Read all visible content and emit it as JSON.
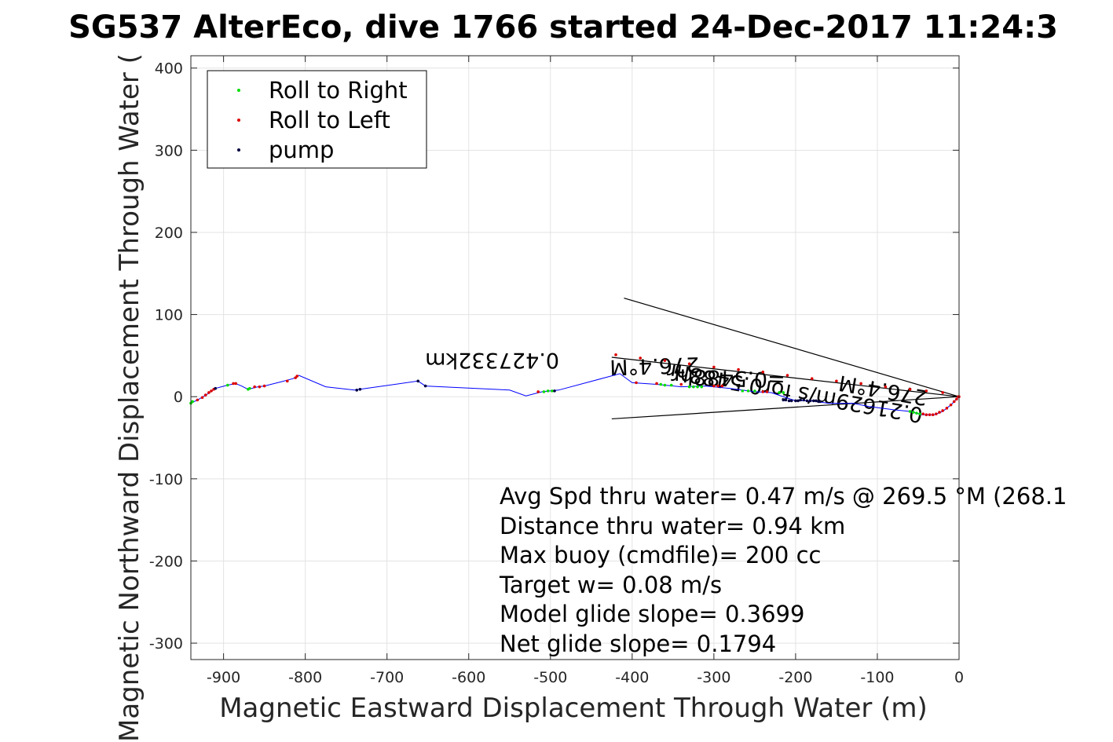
{
  "chart_data": {
    "type": "scatter",
    "title": "SG537 AlterEco, dive 1766 started 24-Dec-2017 11:24:3",
    "xlabel": "Magnetic Eastward Displacement Through Water (m)",
    "ylabel": "Magnetic Northward Displacement Through Water (",
    "xlim": [
      -940,
      0
    ],
    "ylim": [
      -320,
      415
    ],
    "xticks": [
      -900,
      -800,
      -700,
      -600,
      -500,
      -400,
      -300,
      -200,
      -100,
      0
    ],
    "yticks": [
      400,
      300,
      200,
      100,
      0,
      -100,
      -200,
      -300
    ],
    "grid": true,
    "legend_position": "top-left",
    "legend": [
      {
        "label": "Roll to Right",
        "color": "#00dd00"
      },
      {
        "label": "Roll to Left",
        "color": "#dd0000"
      },
      {
        "label": "pump",
        "color": "#000040"
      }
    ],
    "track_color": "#0000ff",
    "track": [
      [
        -940,
        -8
      ],
      [
        -930,
        -3
      ],
      [
        -920,
        3
      ],
      [
        -910,
        10
      ],
      [
        -895,
        14
      ],
      [
        -885,
        16
      ],
      [
        -878,
        13
      ],
      [
        -870,
        9
      ],
      [
        -858,
        12
      ],
      [
        -850,
        13
      ],
      [
        -830,
        18
      ],
      [
        -815,
        22
      ],
      [
        -808,
        26
      ],
      [
        -775,
        12
      ],
      [
        -740,
        8
      ],
      [
        -733,
        9
      ],
      [
        -662,
        19
      ],
      [
        -653,
        13
      ],
      [
        -550,
        8
      ],
      [
        -530,
        1
      ],
      [
        -510,
        6
      ],
      [
        -490,
        8
      ],
      [
        -415,
        28
      ],
      [
        -400,
        17
      ],
      [
        -370,
        15
      ],
      [
        -340,
        12
      ],
      [
        -310,
        13
      ],
      [
        -280,
        10
      ],
      [
        -250,
        6
      ],
      [
        -230,
        5
      ],
      [
        -200,
        -5
      ],
      [
        -180,
        -5
      ],
      [
        -160,
        -8
      ],
      [
        -130,
        -8
      ],
      [
        -110,
        -12
      ],
      [
        -80,
        -16
      ],
      [
        -60,
        -18
      ],
      [
        -45,
        -22
      ],
      [
        -30,
        -22
      ],
      [
        -20,
        -18
      ],
      [
        -10,
        -10
      ],
      [
        -3,
        -3
      ],
      [
        0,
        0
      ]
    ],
    "roll_right": [
      [
        -940,
        -8
      ],
      [
        -938,
        -6
      ],
      [
        -870,
        9
      ],
      [
        -868,
        10
      ],
      [
        -895,
        14
      ],
      [
        -508,
        6
      ],
      [
        -503,
        7
      ],
      [
        -498,
        7
      ],
      [
        -365,
        15
      ],
      [
        -360,
        14
      ],
      [
        -352,
        14
      ],
      [
        -330,
        12
      ],
      [
        -325,
        12
      ],
      [
        -320,
        12
      ],
      [
        -315,
        12
      ],
      [
        -265,
        7
      ],
      [
        -258,
        7
      ],
      [
        -250,
        7
      ],
      [
        -220,
        5
      ],
      [
        -215,
        5
      ],
      [
        -60,
        -18
      ],
      [
        -56,
        -19
      ],
      [
        -52,
        -20
      ],
      [
        -48,
        -21
      ]
    ],
    "roll_left": [
      [
        -932,
        -4
      ],
      [
        -926,
        -1
      ],
      [
        -922,
        2
      ],
      [
        -918,
        5
      ],
      [
        -915,
        7
      ],
      [
        -912,
        9
      ],
      [
        -888,
        16
      ],
      [
        -885,
        16
      ],
      [
        -862,
        12
      ],
      [
        -856,
        12
      ],
      [
        -850,
        13
      ],
      [
        -822,
        19
      ],
      [
        -812,
        23
      ],
      [
        -810,
        25
      ],
      [
        -515,
        6
      ],
      [
        -395,
        17
      ],
      [
        -370,
        16
      ],
      [
        -340,
        15
      ],
      [
        -300,
        13
      ],
      [
        -295,
        13
      ],
      [
        -290,
        13
      ],
      [
        -240,
        6
      ],
      [
        -235,
        6
      ],
      [
        -44,
        -21
      ],
      [
        -40,
        -22
      ],
      [
        -36,
        -22
      ],
      [
        -32,
        -22
      ],
      [
        -28,
        -21
      ],
      [
        -24,
        -19
      ],
      [
        -20,
        -17
      ],
      [
        -15,
        -14
      ],
      [
        -10,
        -10
      ],
      [
        -6,
        -6
      ],
      [
        -3,
        -3
      ],
      [
        -1,
        0
      ],
      [
        0,
        0
      ],
      [
        -20,
        5
      ],
      [
        -40,
        7
      ],
      [
        -60,
        9
      ],
      [
        -90,
        12
      ],
      [
        -120,
        16
      ],
      [
        -150,
        19
      ],
      [
        -180,
        22
      ],
      [
        -210,
        26
      ],
      [
        -240,
        30
      ],
      [
        -270,
        33
      ],
      [
        -300,
        36
      ],
      [
        -330,
        40
      ],
      [
        -360,
        44
      ],
      [
        -390,
        47
      ],
      [
        -420,
        51
      ]
    ],
    "pump": [
      [
        -910,
        10
      ],
      [
        -737,
        8
      ],
      [
        -733,
        9
      ],
      [
        -662,
        19
      ],
      [
        -653,
        13
      ],
      [
        -495,
        7
      ],
      [
        -215,
        -4
      ],
      [
        -212,
        -4
      ],
      [
        -208,
        -5
      ],
      [
        -205,
        -5
      ],
      [
        -200,
        -5
      ],
      [
        -197,
        -5
      ],
      [
        -194,
        -4
      ],
      [
        -190,
        -4
      ],
      [
        -186,
        -5
      ],
      [
        -182,
        -5
      ],
      [
        -178,
        -5
      ],
      [
        -175,
        -5
      ],
      [
        -172,
        -6
      ],
      [
        -170,
        -6
      ]
    ],
    "vector_lines": [
      [
        [
          0,
          0
        ],
        [
          -410,
          120
        ]
      ],
      [
        [
          0,
          0
        ],
        [
          -425,
          -27
        ]
      ],
      [
        [
          0,
          0
        ],
        [
          -425,
          48
        ]
      ]
    ],
    "annotations_rotated": [
      "0.427332km",
      "276.4°M",
      "=0.5488hr",
      "0.21629m/s for0.5488hr",
      "276.4°M"
    ],
    "stats": [
      "Avg Spd thru water=  0.47 m/s @ 269.5 °M (268.1",
      "Distance thru water=  0.94 km",
      "Max buoy (cmdfile)= 200 cc",
      "Target w= 0.08 m/s",
      "Model glide slope= 0.3699",
      "Net glide slope= 0.1794"
    ]
  }
}
